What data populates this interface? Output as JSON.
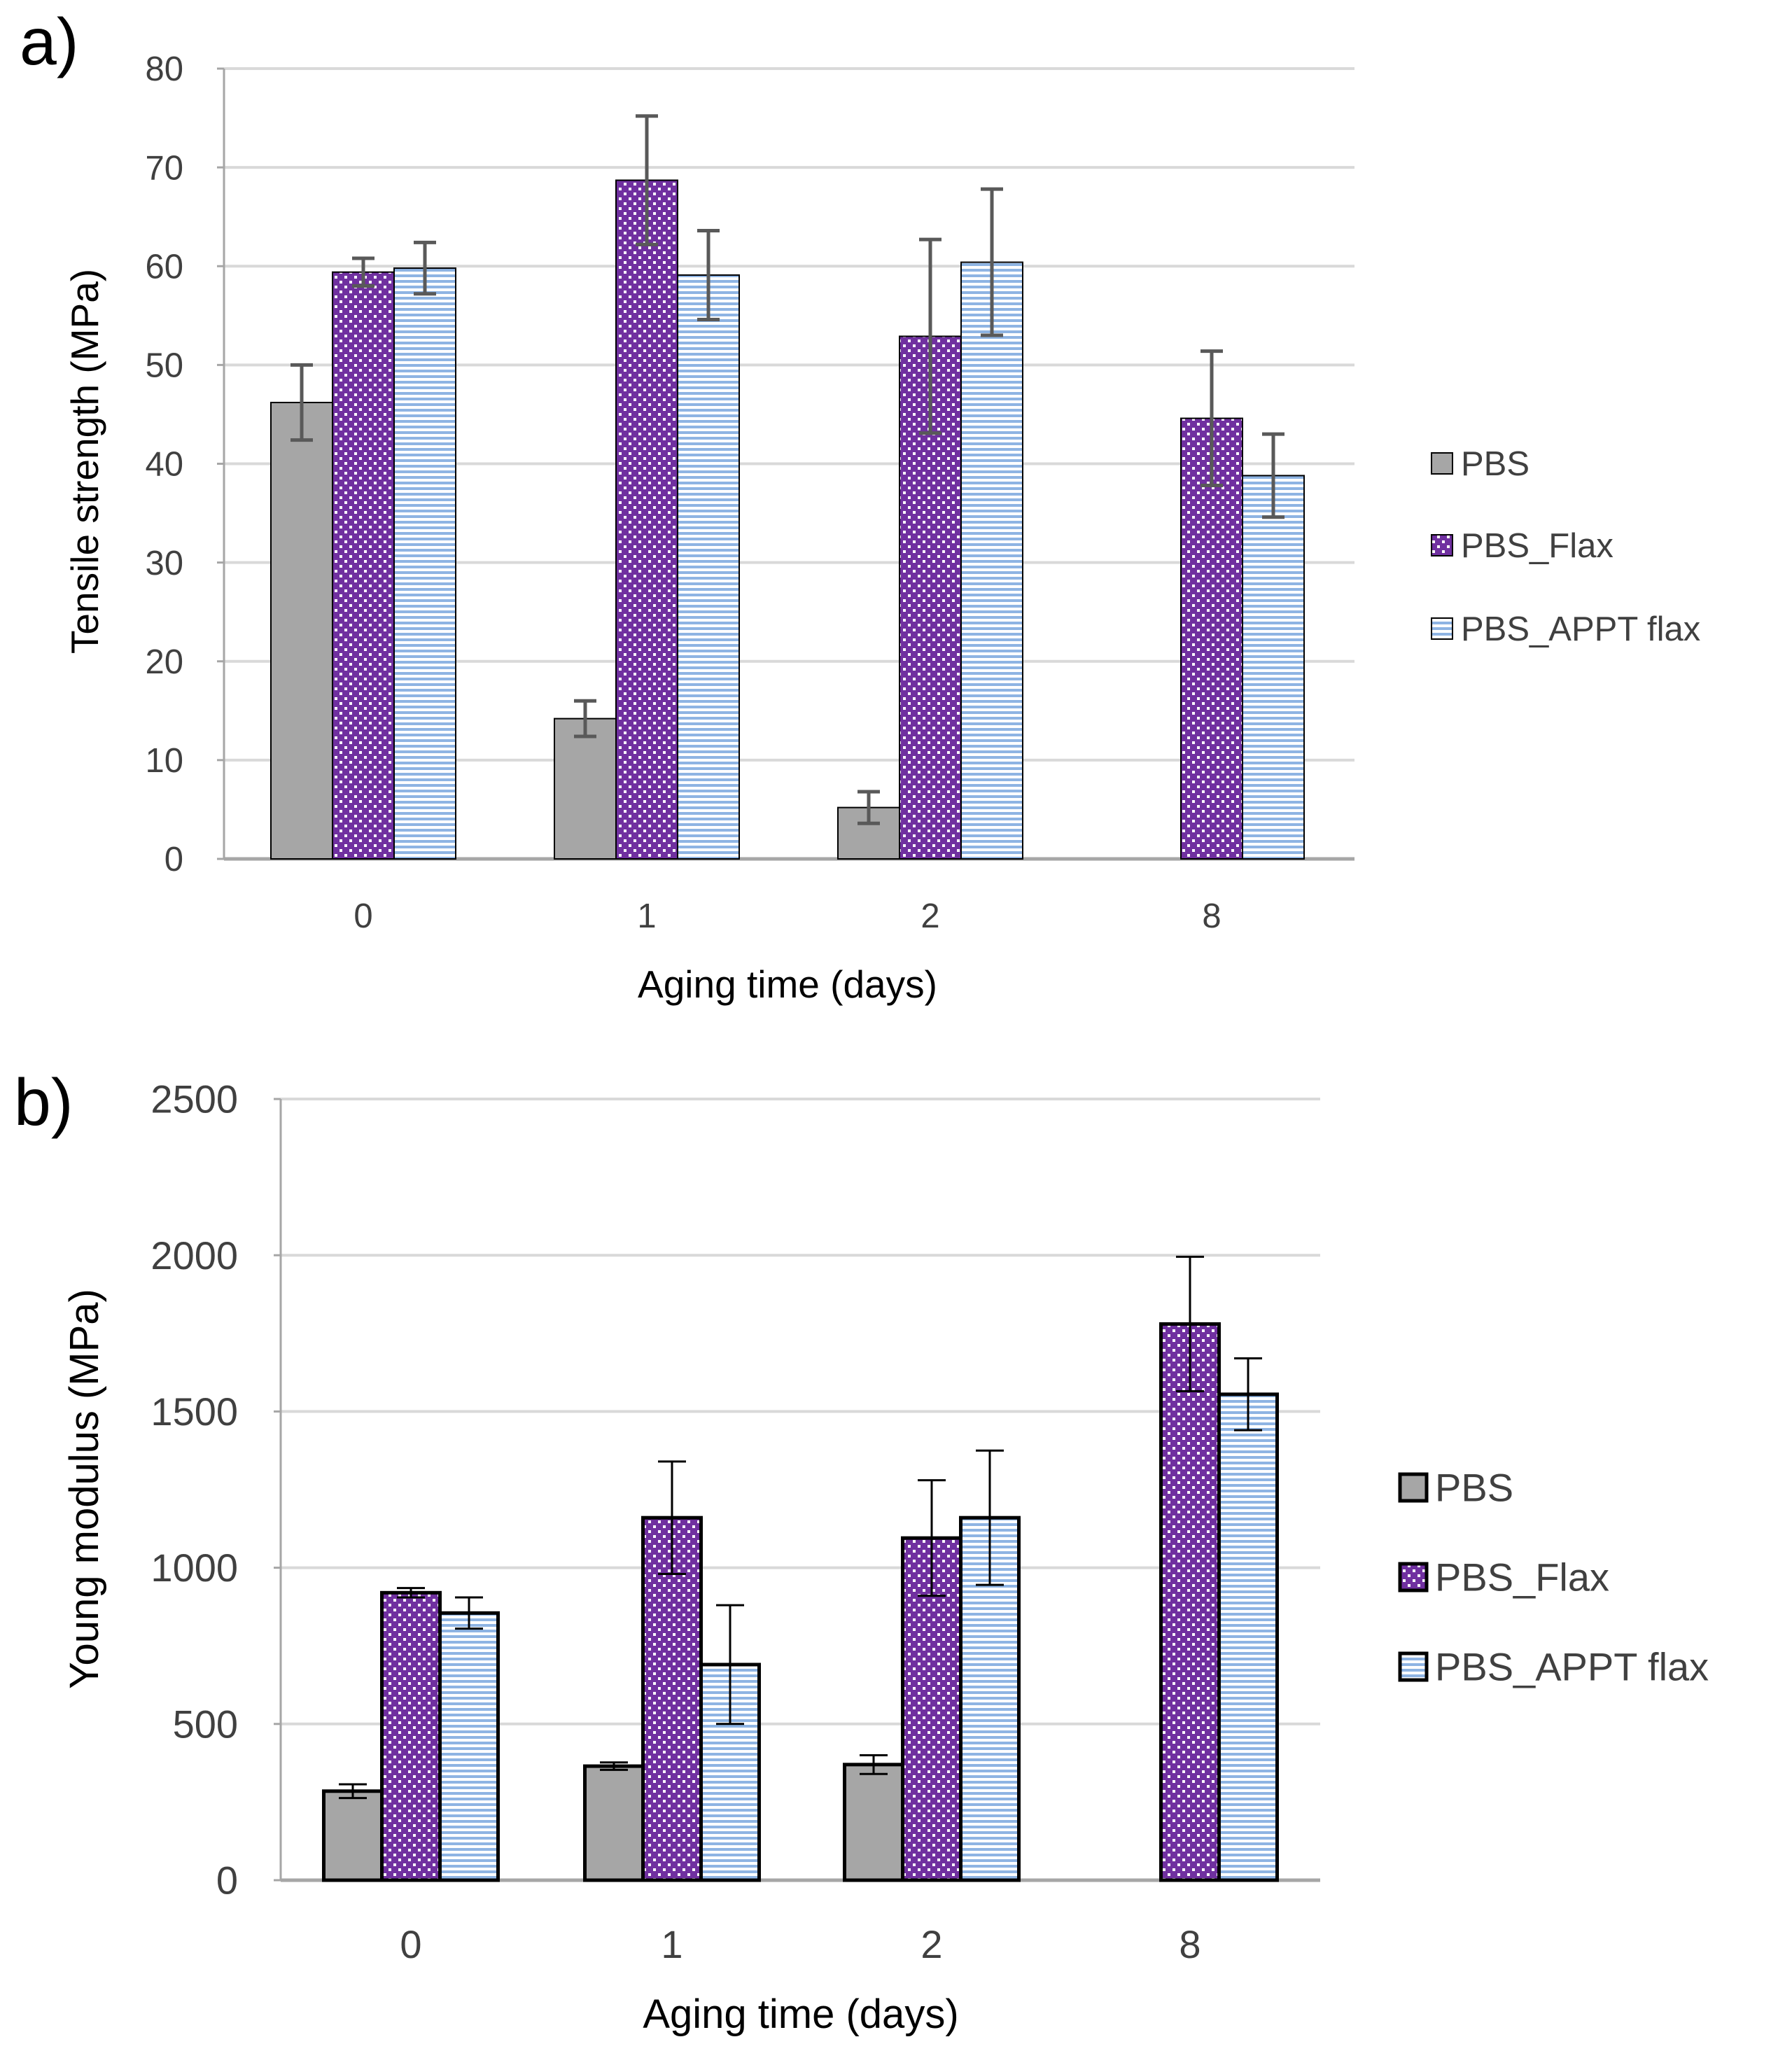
{
  "colors": {
    "PBS": "#a6a6a6",
    "PBS_Flax": "#7030a0",
    "PBS_APPT flax": "#8eb4e3",
    "grid": "#d9d9d9",
    "error_bar": "#595959"
  },
  "chart_data": [
    {
      "panel_label": "a)",
      "type": "bar",
      "xlabel": "Aging time (days)",
      "ylabel": "Tensile strength (MPa)",
      "categories": [
        "0",
        "1",
        "2",
        "8"
      ],
      "ylim": [
        0,
        80
      ],
      "yticks": [
        0,
        10,
        20,
        30,
        40,
        50,
        60,
        70,
        80
      ],
      "grid": true,
      "legend": "right",
      "series": [
        {
          "name": "PBS",
          "values": [
            46.2,
            14.2,
            5.2,
            null
          ],
          "errors": [
            3.8,
            1.8,
            1.6,
            null
          ],
          "pattern": "solid"
        },
        {
          "name": "PBS_Flax",
          "values": [
            59.4,
            68.7,
            52.9,
            44.6
          ],
          "errors": [
            1.4,
            6.5,
            9.8,
            6.8
          ],
          "pattern": "dots"
        },
        {
          "name": "PBS_APPT flax",
          "values": [
            59.8,
            59.1,
            60.4,
            38.8
          ],
          "errors": [
            2.6,
            4.5,
            7.4,
            4.2
          ],
          "pattern": "horizontal-lines"
        }
      ]
    },
    {
      "panel_label": "b)",
      "type": "bar",
      "xlabel": "Aging time (days)",
      "ylabel": "Young modulus (MPa)",
      "categories": [
        "0",
        "1",
        "2",
        "8"
      ],
      "ylim": [
        0,
        2500
      ],
      "yticks": [
        0,
        500,
        1000,
        1500,
        2000,
        2500
      ],
      "grid": true,
      "legend": "right",
      "series": [
        {
          "name": "PBS",
          "values": [
            285,
            365,
            370,
            null
          ],
          "errors": [
            22,
            12,
            30,
            null
          ],
          "pattern": "solid"
        },
        {
          "name": "PBS_Flax",
          "values": [
            920,
            1160,
            1095,
            1780
          ],
          "errors": [
            15,
            180,
            185,
            215
          ],
          "pattern": "dots"
        },
        {
          "name": "PBS_APPT flax",
          "values": [
            855,
            690,
            1160,
            1555
          ],
          "errors": [
            50,
            190,
            215,
            115
          ],
          "pattern": "horizontal-lines"
        }
      ]
    }
  ]
}
